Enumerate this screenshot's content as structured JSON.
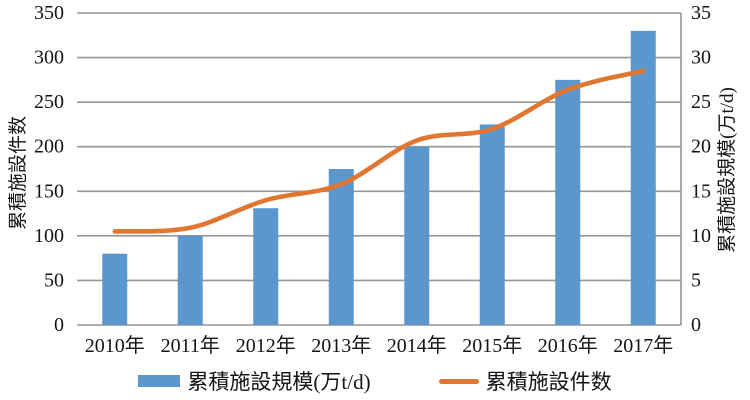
{
  "chart_data": {
    "type": "bar+line combo, dual value axes, horizontal grid on, legend bottom",
    "categories": [
      "2010年",
      "2011年",
      "2012年",
      "2013年",
      "2014年",
      "2015年",
      "2016年",
      "2017年"
    ],
    "series": [
      {
        "name": "累積施設規模(万t/d)",
        "type": "bar",
        "axis": "right",
        "color": "#5b96cd",
        "values": [
          8,
          10,
          13.1,
          17.5,
          20,
          22.5,
          27.5,
          33
        ]
      },
      {
        "name": "累積施設件数",
        "type": "line",
        "axis": "left",
        "color": "#e0762f",
        "values": [
          105,
          109,
          140,
          158,
          207,
          220,
          264,
          285
        ]
      }
    ],
    "left_axis": {
      "title": "累積施設件数",
      "min": 0,
      "max": 350,
      "step": 50,
      "tick_labels": [
        "0",
        "50",
        "100",
        "150",
        "200",
        "250",
        "300",
        "350"
      ]
    },
    "right_axis": {
      "title": "累積施設規模(万t/d)",
      "min": 0,
      "max": 35,
      "step": 5,
      "tick_labels": [
        "0",
        "5",
        "10",
        "15",
        "20",
        "25",
        "30",
        "35"
      ]
    },
    "legend": {
      "position": "bottom",
      "items": [
        {
          "label": "累積施設規模(万t/d)",
          "swatch": "bar",
          "color": "#5b96cd"
        },
        {
          "label": "累積施設件数",
          "swatch": "line",
          "color": "#e0762f"
        }
      ]
    },
    "colors": {
      "grid": "#969696",
      "axis": "#969696",
      "text": "#141414",
      "background": "#ffffff"
    }
  }
}
